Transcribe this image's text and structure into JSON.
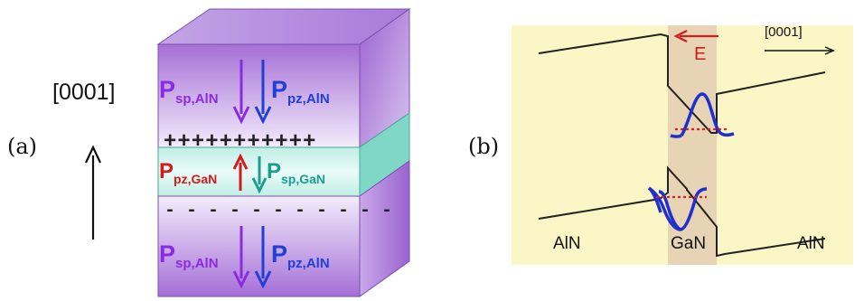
{
  "panel_a": {
    "label": "(a)",
    "direction": "[0001]",
    "top_layer": {
      "psp": "P",
      "psp_sub": "sp,AlN",
      "ppz": "P",
      "ppz_sub": "pz,AlN"
    },
    "middle_layer": {
      "ppz": "P",
      "ppz_sub": "pz,GaN",
      "psp": "P",
      "psp_sub": "sp,GaN"
    },
    "bottom_layer": {
      "psp": "P",
      "psp_sub": "sp,AlN",
      "ppz": "P",
      "ppz_sub": "pz,AlN"
    },
    "plus_charges": "+++++++++++",
    "minus_charges": "- - - - - - - - - - -"
  },
  "panel_b": {
    "label": "(b)",
    "field_label": "E",
    "direction": "[0001]",
    "left_material": "AlN",
    "center_material": "GaN",
    "right_material": "AlN"
  },
  "colors": {
    "purple": "#8a2be2",
    "blue": "#1f3fd6",
    "red": "#d41a1a",
    "teal": "#1a9e8e",
    "panel_b_bg": "#fbf6c6",
    "gan_band": "#e6d4b4"
  }
}
